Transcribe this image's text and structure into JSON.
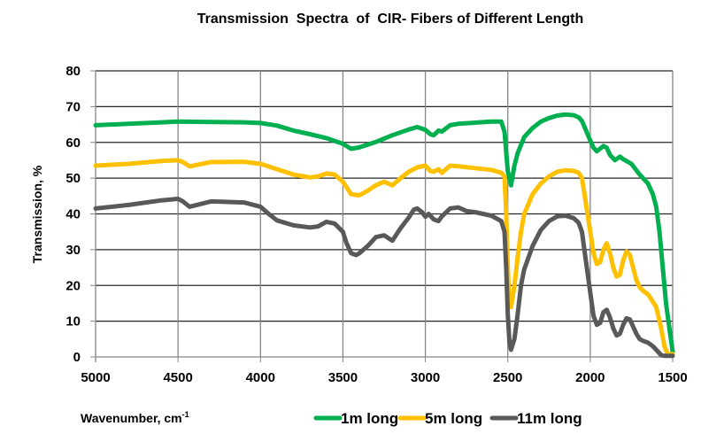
{
  "chart_data": {
    "type": "line",
    "title": "Transmission  Spectra  of  CIR- Fibers of Different Length",
    "xlabel": "Wavenumber, cm",
    "xlabel_superscript": "-1",
    "ylabel": "Transmission, %",
    "xlim": [
      5000,
      1500
    ],
    "x_reversed": true,
    "ylim": [
      0,
      80
    ],
    "xticks": [
      5000,
      4500,
      4000,
      3500,
      3000,
      2500,
      2000,
      1500
    ],
    "yticks": [
      0,
      10,
      20,
      30,
      40,
      50,
      60,
      70,
      80
    ],
    "grid": {
      "horizontal": true,
      "vertical": true
    },
    "legend_position": "bottom",
    "series": [
      {
        "name": "1m long",
        "color": "#00b050",
        "x": [
          5000,
          4800,
          4600,
          4500,
          4300,
          4100,
          4000,
          3900,
          3800,
          3700,
          3600,
          3500,
          3450,
          3400,
          3300,
          3200,
          3100,
          3050,
          3000,
          2970,
          2950,
          2920,
          2900,
          2850,
          2800,
          2700,
          2600,
          2540,
          2520,
          2500,
          2480,
          2460,
          2440,
          2400,
          2350,
          2300,
          2250,
          2200,
          2150,
          2100,
          2070,
          2050,
          2000,
          1980,
          1960,
          1920,
          1900,
          1880,
          1850,
          1820,
          1800,
          1750,
          1700,
          1650,
          1620,
          1600,
          1580,
          1560,
          1540,
          1520,
          1500
        ],
        "y": [
          64.8,
          65.2,
          65.6,
          65.8,
          65.7,
          65.6,
          65.4,
          64.7,
          63.3,
          62.3,
          61.2,
          59.6,
          58.2,
          58.6,
          60.1,
          62.0,
          63.6,
          64.3,
          63.5,
          62.3,
          62.0,
          63.3,
          63.0,
          64.8,
          65.2,
          65.5,
          65.8,
          65.8,
          63.0,
          52.0,
          48.0,
          53.5,
          57.0,
          61.5,
          64.0,
          65.8,
          66.8,
          67.5,
          67.8,
          67.6,
          67.0,
          66.0,
          60.5,
          58.5,
          57.5,
          59.0,
          58.5,
          56.5,
          55.0,
          56.0,
          55.3,
          54.0,
          51.0,
          48.5,
          45.5,
          42.0,
          35.0,
          25.0,
          15.0,
          8.0,
          1.5
        ]
      },
      {
        "name": "5m long",
        "color": "#ffc000",
        "x": [
          5000,
          4800,
          4600,
          4500,
          4470,
          4430,
          4300,
          4100,
          4000,
          3900,
          3800,
          3700,
          3650,
          3600,
          3550,
          3500,
          3450,
          3400,
          3350,
          3300,
          3250,
          3200,
          3150,
          3100,
          3050,
          3000,
          2970,
          2950,
          2920,
          2900,
          2850,
          2800,
          2700,
          2600,
          2540,
          2520,
          2510,
          2500,
          2490,
          2480,
          2460,
          2440,
          2420,
          2400,
          2350,
          2300,
          2250,
          2200,
          2150,
          2100,
          2070,
          2050,
          2030,
          2000,
          1980,
          1960,
          1940,
          1920,
          1900,
          1880,
          1860,
          1840,
          1820,
          1800,
          1780,
          1760,
          1740,
          1720,
          1700,
          1680,
          1650,
          1600,
          1570,
          1550,
          1530,
          1500
        ],
        "y": [
          53.5,
          54.0,
          54.8,
          55.0,
          54.5,
          53.3,
          54.5,
          54.6,
          54.0,
          52.5,
          51.0,
          50.2,
          50.5,
          51.3,
          51.0,
          49.0,
          45.5,
          45.2,
          46.5,
          48.0,
          49.0,
          48.0,
          50.0,
          51.8,
          53.0,
          53.5,
          52.0,
          51.8,
          52.5,
          51.5,
          53.5,
          53.3,
          52.8,
          52.3,
          51.5,
          50.5,
          40.0,
          25.0,
          14.0,
          14.0,
          20.0,
          28.0,
          35.0,
          40.0,
          45.5,
          48.5,
          50.5,
          51.8,
          52.2,
          52.0,
          51.5,
          50.0,
          44.0,
          35.0,
          29.0,
          26.0,
          26.5,
          30.0,
          31.8,
          29.0,
          25.0,
          22.5,
          23.0,
          27.0,
          29.5,
          28.5,
          25.0,
          21.5,
          19.5,
          18.5,
          17.5,
          14.0,
          8.0,
          3.0,
          0.8,
          0.8
        ]
      },
      {
        "name": "11m long",
        "color": "#595959",
        "x": [
          5000,
          4800,
          4600,
          4500,
          4470,
          4430,
          4300,
          4100,
          4000,
          3950,
          3900,
          3800,
          3700,
          3650,
          3600,
          3550,
          3500,
          3480,
          3450,
          3420,
          3400,
          3350,
          3300,
          3250,
          3200,
          3150,
          3100,
          3070,
          3050,
          3020,
          3000,
          2980,
          2950,
          2920,
          2900,
          2850,
          2800,
          2750,
          2700,
          2600,
          2540,
          2520,
          2510,
          2500,
          2490,
          2480,
          2460,
          2440,
          2420,
          2400,
          2350,
          2300,
          2250,
          2200,
          2150,
          2100,
          2070,
          2050,
          2030,
          2000,
          1980,
          1960,
          1940,
          1920,
          1900,
          1880,
          1860,
          1840,
          1820,
          1800,
          1780,
          1760,
          1740,
          1720,
          1700,
          1680,
          1650,
          1620,
          1600,
          1570,
          1550,
          1530,
          1500
        ],
        "y": [
          41.5,
          42.5,
          43.8,
          44.2,
          43.5,
          42.0,
          43.5,
          43.2,
          42.0,
          40.0,
          38.2,
          36.8,
          36.2,
          36.5,
          37.8,
          37.3,
          35.0,
          32.0,
          29.0,
          28.5,
          29.0,
          31.0,
          33.5,
          34.0,
          32.5,
          36.0,
          39.0,
          41.2,
          41.5,
          40.5,
          39.2,
          40.0,
          38.5,
          38.0,
          39.3,
          41.5,
          41.8,
          40.8,
          40.5,
          39.5,
          38.0,
          35.0,
          25.0,
          12.0,
          4.0,
          2.0,
          5.0,
          12.0,
          20.0,
          24.5,
          31.0,
          35.5,
          38.0,
          39.3,
          39.5,
          38.8,
          37.5,
          35.0,
          28.0,
          18.0,
          11.5,
          9.0,
          9.5,
          12.5,
          13.2,
          11.0,
          8.0,
          6.0,
          6.5,
          9.0,
          10.8,
          10.5,
          8.5,
          6.5,
          5.0,
          4.5,
          4.0,
          3.0,
          2.0,
          0.5,
          0.3,
          0.3,
          0.3
        ]
      }
    ]
  }
}
